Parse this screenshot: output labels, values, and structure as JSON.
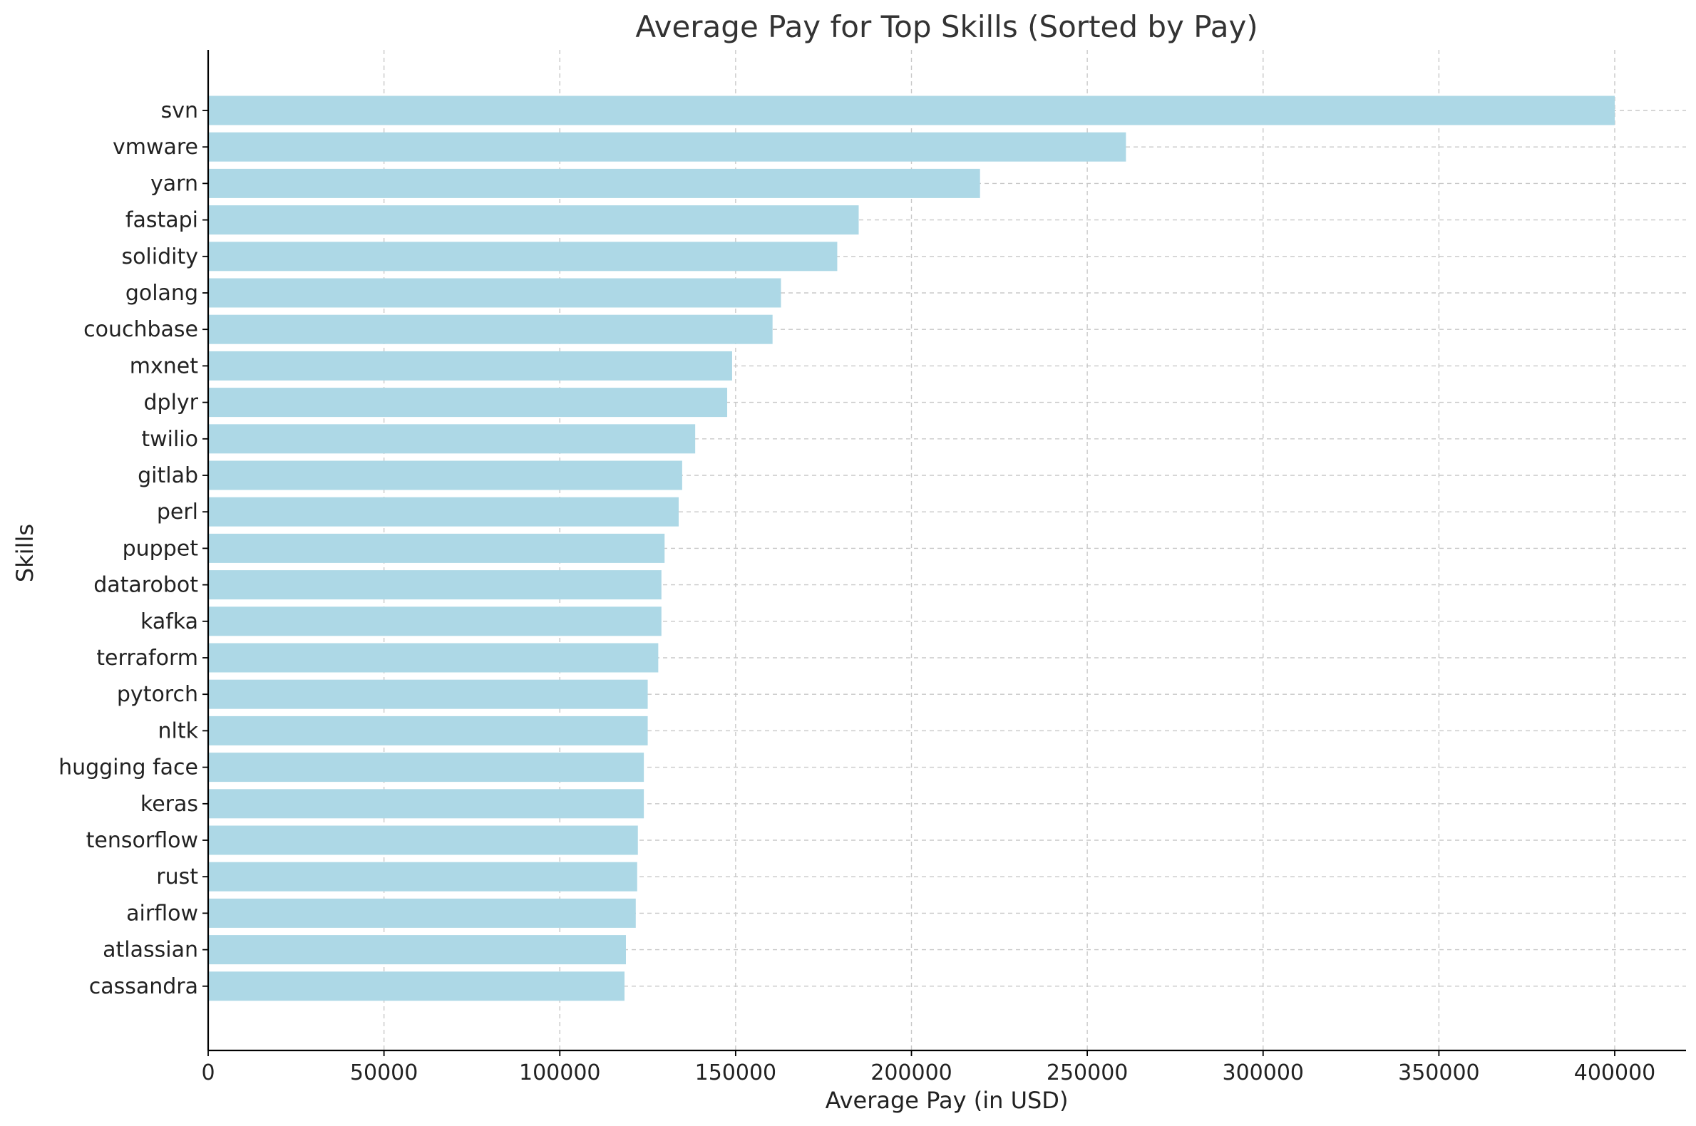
{
  "chart_data": {
    "type": "bar",
    "orientation": "horizontal",
    "title": "Average Pay for Top Skills (Sorted by Pay)",
    "xlabel": "Average Pay (in USD)",
    "ylabel": "Skills",
    "xlim": [
      0,
      420000
    ],
    "xticks": [
      0,
      50000,
      100000,
      150000,
      200000,
      250000,
      300000,
      350000,
      400000
    ],
    "grid": true,
    "bar_color": "#add8e6",
    "categories": [
      "svn",
      "vmware",
      "yarn",
      "fastapi",
      "solidity",
      "golang",
      "couchbase",
      "mxnet",
      "dplyr",
      "twilio",
      "gitlab",
      "perl",
      "puppet",
      "datarobot",
      "kafka",
      "terraform",
      "pytorch",
      "nltk",
      "hugging face",
      "keras",
      "tensorflow",
      "rust",
      "airflow",
      "atlassian",
      "cassandra"
    ],
    "values": [
      400000,
      261000,
      219500,
      185000,
      178900,
      162900,
      160500,
      149000,
      147600,
      138500,
      134800,
      133800,
      129800,
      128900,
      128900,
      128000,
      125000,
      125000,
      123900,
      123900,
      122200,
      122000,
      121600,
      118800,
      118400
    ]
  }
}
